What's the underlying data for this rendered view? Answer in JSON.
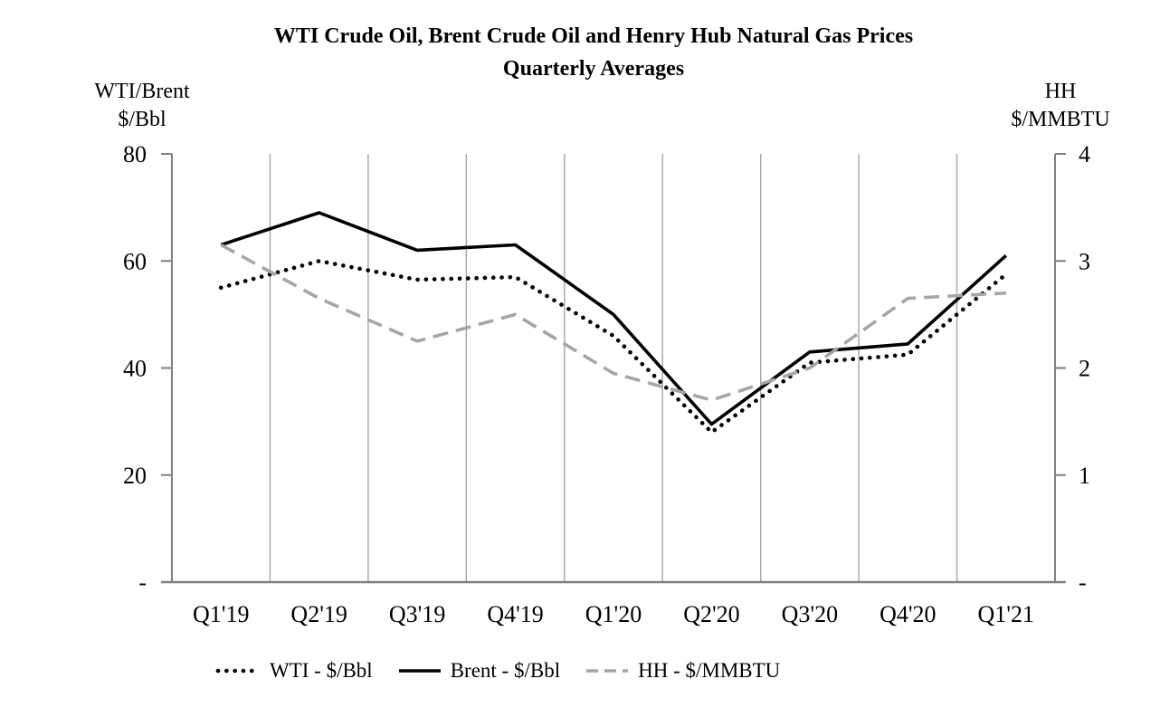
{
  "title": {
    "line1": "WTI Crude Oil, Brent Crude Oil and Henry Hub Natural Gas Prices",
    "line2": "Quarterly Averages"
  },
  "axes": {
    "left": {
      "name_line1": "WTI/Brent",
      "name_line2": "$/Bbl",
      "ticks": [
        "80",
        "60",
        "40",
        "20",
        "-"
      ],
      "lim": [
        0,
        80
      ]
    },
    "right": {
      "name_line1": "HH",
      "name_line2": "$/MMBTU",
      "ticks": [
        "4",
        "3",
        "2",
        "1",
        "-"
      ],
      "lim": [
        0,
        4
      ]
    }
  },
  "colors": {
    "text": "#000000",
    "axis_line": "#808080",
    "gridline": "#a6a6a6",
    "wti_line": "#000000",
    "brent_line": "#000000",
    "hh_line": "#a6a6a6"
  },
  "chart_data": {
    "type": "line",
    "title": "WTI Crude Oil, Brent Crude Oil and Henry Hub Natural Gas Prices",
    "subtitle": "Quarterly Averages",
    "categories": [
      "Q1'19",
      "Q2'19",
      "Q3'19",
      "Q4'19",
      "Q1'20",
      "Q2'20",
      "Q3'20",
      "Q4'20",
      "Q1'21"
    ],
    "series": [
      {
        "name": "WTI - $/Bbl",
        "axis": "left",
        "line_style": "dotted",
        "color": "#000000",
        "values": [
          55,
          60,
          56.5,
          57,
          46,
          28,
          41,
          42.5,
          57.5
        ]
      },
      {
        "name": "Brent - $/Bbl",
        "axis": "left",
        "line_style": "solid",
        "color": "#000000",
        "values": [
          63,
          69,
          62,
          63,
          50,
          29.5,
          43,
          44.5,
          61
        ]
      },
      {
        "name": "HH - $/MMBTU",
        "axis": "right",
        "line_style": "dashed",
        "color": "#a6a6a6",
        "values": [
          3.15,
          2.65,
          2.25,
          2.5,
          1.95,
          1.7,
          2.0,
          2.65,
          2.7
        ]
      }
    ],
    "left_ylabel": "WTI/Brent $/Bbl",
    "right_ylabel": "HH $/MMBTU",
    "left_ylim": [
      0,
      80
    ],
    "right_ylim": [
      0,
      4
    ],
    "left_tick_step": 20,
    "right_tick_step": 1,
    "grid": "vertical-only",
    "legend_position": "bottom"
  }
}
